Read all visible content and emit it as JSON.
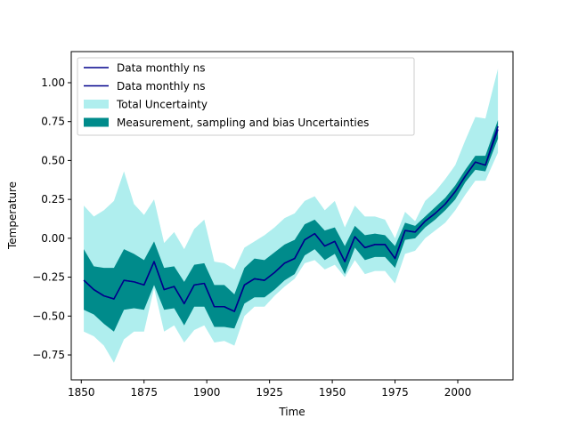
{
  "chart_data": {
    "type": "area",
    "xlabel": "Time",
    "ylabel": "Temperature",
    "xlim": [
      1846,
      2022
    ],
    "ylim": [
      -0.91,
      1.2
    ],
    "xticks": [
      1850,
      1875,
      1900,
      1925,
      1950,
      1975,
      2000
    ],
    "yticks": [
      -0.75,
      -0.5,
      -0.25,
      0.0,
      0.25,
      0.5,
      0.75,
      1.0
    ],
    "xtick_labels": [
      "1850",
      "1875",
      "1900",
      "1925",
      "1950",
      "1975",
      "2000"
    ],
    "ytick_labels": [
      "−0.75",
      "−0.50",
      "−0.25",
      "0.00",
      "0.25",
      "0.50",
      "0.75",
      "1.00"
    ],
    "grid": false,
    "legend_position": "upper-left",
    "x": [
      1851,
      1855,
      1859,
      1863,
      1867,
      1871,
      1875,
      1879,
      1883,
      1887,
      1891,
      1895,
      1899,
      1903,
      1907,
      1911,
      1915,
      1919,
      1923,
      1927,
      1931,
      1935,
      1939,
      1943,
      1947,
      1951,
      1955,
      1959,
      1963,
      1967,
      1971,
      1975,
      1979,
      1983,
      1987,
      1991,
      1995,
      1999,
      2003,
      2007,
      2011,
      2016
    ],
    "series": [
      {
        "name": "Data monthly ns",
        "kind": "line",
        "color": "#00008b",
        "values": [
          -0.27,
          -0.33,
          -0.37,
          -0.39,
          -0.27,
          -0.28,
          -0.3,
          -0.15,
          -0.33,
          -0.31,
          -0.42,
          -0.3,
          -0.29,
          -0.44,
          -0.44,
          -0.47,
          -0.3,
          -0.26,
          -0.27,
          -0.22,
          -0.16,
          -0.13,
          -0.01,
          0.03,
          -0.05,
          -0.02,
          -0.15,
          0.01,
          -0.06,
          -0.04,
          -0.04,
          -0.13,
          0.05,
          0.04,
          0.11,
          0.16,
          0.22,
          0.3,
          0.4,
          0.49,
          0.47,
          0.7
        ]
      },
      {
        "name": "Data monthly ns",
        "kind": "line",
        "color": "#00008b",
        "values": [
          -0.27,
          -0.33,
          -0.37,
          -0.39,
          -0.27,
          -0.28,
          -0.3,
          -0.15,
          -0.33,
          -0.31,
          -0.42,
          -0.3,
          -0.29,
          -0.44,
          -0.44,
          -0.47,
          -0.3,
          -0.26,
          -0.27,
          -0.22,
          -0.16,
          -0.13,
          -0.01,
          0.03,
          -0.05,
          -0.02,
          -0.15,
          0.01,
          -0.06,
          -0.04,
          -0.04,
          -0.13,
          0.05,
          0.04,
          0.11,
          0.16,
          0.22,
          0.3,
          0.4,
          0.49,
          0.47,
          0.72
        ]
      },
      {
        "name": "Total Uncertainty",
        "kind": "band",
        "color": "#afeeee",
        "lower": [
          -0.6,
          -0.63,
          -0.69,
          -0.8,
          -0.65,
          -0.6,
          -0.6,
          -0.32,
          -0.6,
          -0.56,
          -0.67,
          -0.59,
          -0.56,
          -0.67,
          -0.66,
          -0.69,
          -0.5,
          -0.44,
          -0.44,
          -0.37,
          -0.31,
          -0.26,
          -0.16,
          -0.14,
          -0.2,
          -0.17,
          -0.25,
          -0.14,
          -0.23,
          -0.21,
          -0.21,
          -0.29,
          -0.1,
          -0.08,
          0.0,
          0.05,
          0.1,
          0.18,
          0.28,
          0.37,
          0.37,
          0.55
        ],
        "upper": [
          0.21,
          0.14,
          0.18,
          0.24,
          0.43,
          0.22,
          0.15,
          0.25,
          -0.03,
          0.04,
          -0.07,
          0.06,
          0.12,
          -0.15,
          -0.16,
          -0.2,
          -0.06,
          -0.02,
          0.02,
          0.07,
          0.13,
          0.16,
          0.24,
          0.27,
          0.18,
          0.24,
          0.07,
          0.21,
          0.14,
          0.14,
          0.12,
          0.0,
          0.17,
          0.11,
          0.24,
          0.3,
          0.38,
          0.47,
          0.63,
          0.78,
          0.77,
          1.09
        ]
      },
      {
        "name": "Measurement, sampling and bias Uncertainties",
        "kind": "band",
        "color": "#008b8b",
        "lower": [
          -0.46,
          -0.49,
          -0.55,
          -0.6,
          -0.46,
          -0.45,
          -0.46,
          -0.3,
          -0.46,
          -0.45,
          -0.56,
          -0.44,
          -0.44,
          -0.57,
          -0.57,
          -0.58,
          -0.42,
          -0.38,
          -0.38,
          -0.33,
          -0.27,
          -0.23,
          -0.11,
          -0.07,
          -0.14,
          -0.1,
          -0.23,
          -0.06,
          -0.14,
          -0.12,
          -0.12,
          -0.19,
          -0.01,
          0.0,
          0.07,
          0.12,
          0.18,
          0.25,
          0.36,
          0.44,
          0.43,
          0.64
        ],
        "upper": [
          -0.07,
          -0.18,
          -0.19,
          -0.19,
          -0.07,
          -0.1,
          -0.14,
          -0.02,
          -0.19,
          -0.18,
          -0.28,
          -0.17,
          -0.16,
          -0.3,
          -0.3,
          -0.36,
          -0.19,
          -0.13,
          -0.14,
          -0.09,
          -0.04,
          -0.01,
          0.09,
          0.12,
          0.05,
          0.07,
          -0.05,
          0.08,
          0.02,
          0.03,
          0.02,
          -0.05,
          0.1,
          0.08,
          0.14,
          0.2,
          0.26,
          0.34,
          0.44,
          0.53,
          0.53,
          0.76
        ]
      }
    ],
    "legend": [
      {
        "label": "Data monthly ns",
        "swatch": "line",
        "color": "#00008b"
      },
      {
        "label": "Data monthly ns",
        "swatch": "line",
        "color": "#00008b"
      },
      {
        "label": "Total Uncertainty",
        "swatch": "patch",
        "color": "#afeeee"
      },
      {
        "label": "Measurement, sampling and bias Uncertainties",
        "swatch": "patch",
        "color": "#008b8b"
      }
    ]
  }
}
